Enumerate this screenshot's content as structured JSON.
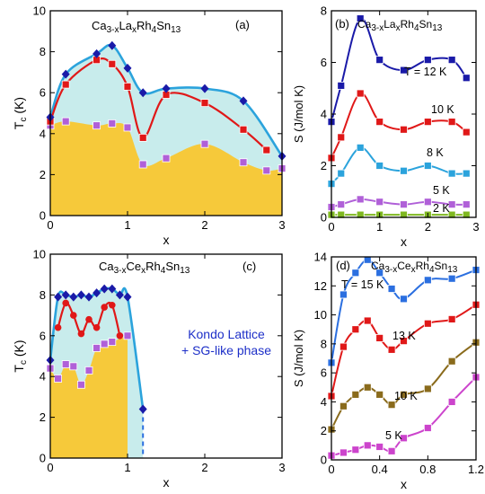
{
  "chart_data": [
    {
      "panel_label": "(a)",
      "type": "line",
      "compound": {
        "base": "Ca",
        "sub1": "3-x",
        "mid1": "La",
        "sub2": "x",
        "rest": "Rh",
        "sub3": "4",
        "rest2": "Sn",
        "sub4": "13"
      },
      "xlabel": "x",
      "ylabel_main": "T",
      "ylabel_sub": "c",
      "ylabel_unit": " (K)",
      "xlim": [
        0,
        3
      ],
      "ylim": [
        0,
        10
      ],
      "xticks": [
        0,
        1,
        2,
        3
      ],
      "yticks": [
        0,
        2,
        4,
        6,
        8,
        10
      ],
      "series": [
        {
          "marker": "diamond",
          "color": "#1a1aa8",
          "line_color": "#2ba3dc",
          "x": [
            0,
            0.2,
            0.6,
            0.8,
            1.0,
            1.2,
            1.5,
            2.0,
            2.5,
            3.0
          ],
          "y": [
            4.8,
            6.9,
            7.9,
            8.3,
            7.2,
            6.0,
            6.2,
            6.2,
            5.6,
            2.9
          ]
        },
        {
          "marker": "square",
          "color": "#e01818",
          "line_color": "#e01818",
          "x": [
            0,
            0.2,
            0.6,
            0.8,
            1.0,
            1.2,
            1.5,
            2.0,
            2.5,
            2.8
          ],
          "y": [
            4.6,
            6.4,
            7.6,
            7.4,
            6.3,
            3.8,
            5.9,
            5.5,
            4.2,
            3.2
          ]
        },
        {
          "marker": "square",
          "color": "#b060d8",
          "line_color": null,
          "x": [
            0,
            0.2,
            0.6,
            0.8,
            1.0,
            1.2,
            1.5,
            2.0,
            2.5,
            2.8,
            3.0
          ],
          "y": [
            4.4,
            4.6,
            4.4,
            4.5,
            4.3,
            2.5,
            2.8,
            3.5,
            2.6,
            2.2,
            2.3
          ]
        }
      ]
    },
    {
      "panel_label": "(b)",
      "type": "line",
      "compound": {
        "base": "Ca",
        "sub1": "3-x",
        "mid1": "La",
        "sub2": "x",
        "rest": "Rh",
        "sub3": "4",
        "rest2": "Sn",
        "sub4": "13"
      },
      "xlabel": "x",
      "ylabel": "S (J/mol K)",
      "xlim": [
        0,
        3
      ],
      "ylim": [
        0,
        8
      ],
      "xticks": [
        0,
        1,
        2,
        3
      ],
      "yticks": [
        0,
        2,
        4,
        6,
        8
      ],
      "series": [
        {
          "name": "T = 12 K",
          "color": "#1a1aa8",
          "x": [
            0,
            0.2,
            0.6,
            1.0,
            1.5,
            2.0,
            2.5,
            2.8
          ],
          "y": [
            3.7,
            5.1,
            7.7,
            6.1,
            5.7,
            6.1,
            6.1,
            5.4
          ]
        },
        {
          "name": "10 K",
          "color": "#e01818",
          "x": [
            0,
            0.2,
            0.6,
            1.0,
            1.5,
            2.0,
            2.5,
            2.8
          ],
          "y": [
            2.3,
            3.1,
            4.8,
            3.7,
            3.4,
            3.7,
            3.7,
            3.3
          ]
        },
        {
          "name": "8 K",
          "color": "#2ba3dc",
          "x": [
            0,
            0.2,
            0.6,
            1.0,
            1.5,
            2.0,
            2.5,
            2.8
          ],
          "y": [
            1.3,
            1.7,
            2.7,
            2.0,
            1.8,
            2.0,
            1.7,
            1.7
          ]
        },
        {
          "name": "5 K",
          "color": "#b060d8",
          "x": [
            0,
            0.2,
            0.6,
            1.0,
            1.5,
            2.0,
            2.5,
            2.8
          ],
          "y": [
            0.4,
            0.5,
            0.7,
            0.6,
            0.5,
            0.6,
            0.5,
            0.5
          ]
        },
        {
          "name": "2 K",
          "color": "#7fb820",
          "x": [
            0,
            0.2,
            0.6,
            1.0,
            1.5,
            2.0,
            2.5,
            2.8
          ],
          "y": [
            0.1,
            0.1,
            0.1,
            0.1,
            0.1,
            0.1,
            0.1,
            0.1
          ]
        }
      ]
    },
    {
      "panel_label": "(c)",
      "type": "line",
      "compound": {
        "base": "Ca",
        "sub1": "3-x",
        "mid1": "Ce",
        "sub2": "x",
        "rest": "Rh",
        "sub3": "4",
        "rest2": "Sn",
        "sub4": "13"
      },
      "annotation": [
        "Kondo Lattice",
        "+ SG-like phase"
      ],
      "xlabel": "x",
      "ylabel_main": "T",
      "ylabel_sub": "c",
      "ylabel_unit": " (K)",
      "xlim": [
        0,
        3
      ],
      "ylim": [
        0,
        10
      ],
      "xticks": [
        0,
        1,
        2,
        3
      ],
      "yticks": [
        0,
        2,
        4,
        6,
        8,
        10
      ],
      "series": [
        {
          "marker": "diamond",
          "color": "#1a1aa8",
          "line_color": "#2ba3dc",
          "x": [
            0,
            0.1,
            0.2,
            0.3,
            0.4,
            0.5,
            0.6,
            0.7,
            0.8,
            0.9,
            1.0,
            1.2
          ],
          "y": [
            4.8,
            7.9,
            8.0,
            7.9,
            8.0,
            7.9,
            8.1,
            8.3,
            8.3,
            8.0,
            7.9,
            2.4
          ]
        },
        {
          "marker": "circle",
          "color": "#e01818",
          "line_color": "#e01818",
          "x": [
            0.1,
            0.2,
            0.3,
            0.4,
            0.5,
            0.6,
            0.7,
            0.8,
            0.9
          ],
          "y": [
            6.4,
            7.6,
            7.0,
            6.1,
            6.8,
            6.4,
            7.4,
            7.5,
            6.0
          ]
        },
        {
          "marker": "square",
          "color": "#b060d8",
          "line_color": null,
          "x": [
            0,
            0.1,
            0.2,
            0.3,
            0.4,
            0.5,
            0.6,
            0.7,
            0.8,
            1.0
          ],
          "y": [
            4.4,
            3.9,
            4.6,
            4.5,
            3.6,
            4.3,
            5.4,
            5.6,
            5.7,
            6.0
          ]
        }
      ]
    },
    {
      "panel_label": "(d)",
      "type": "line",
      "compound": {
        "base": "Ca",
        "sub1": "3-x",
        "mid1": "Ce",
        "sub2": "x",
        "rest": "Rh",
        "sub3": "4",
        "rest2": "Sn",
        "sub4": "13"
      },
      "xlabel": "x",
      "ylabel": "S (J/mol K)",
      "xlim": [
        0,
        1.2
      ],
      "ylim": [
        0,
        14
      ],
      "xticks": [
        0,
        0.4,
        0.8,
        1.2
      ],
      "yticks": [
        0,
        2,
        4,
        6,
        8,
        10,
        12,
        14
      ],
      "series": [
        {
          "name": "T = 15 K",
          "color": "#2b6fe0",
          "x": [
            0,
            0.1,
            0.2,
            0.3,
            0.4,
            0.5,
            0.6,
            0.8,
            1.0,
            1.2
          ],
          "y": [
            6.7,
            11.4,
            12.9,
            13.8,
            12.9,
            11.8,
            11.1,
            12.4,
            12.5,
            13.1
          ]
        },
        {
          "name": "13 K",
          "color": "#e01818",
          "x": [
            0,
            0.1,
            0.2,
            0.3,
            0.4,
            0.5,
            0.6,
            0.8,
            1.0,
            1.2
          ],
          "y": [
            4.4,
            7.8,
            9.0,
            9.6,
            8.4,
            7.6,
            8.2,
            9.4,
            9.7,
            10.7
          ]
        },
        {
          "name": "10 K",
          "color": "#8a6b1c",
          "x": [
            0,
            0.1,
            0.2,
            0.3,
            0.4,
            0.5,
            0.6,
            0.8,
            1.0,
            1.2
          ],
          "y": [
            2.1,
            3.7,
            4.5,
            5.0,
            4.5,
            3.8,
            4.5,
            4.9,
            6.8,
            8.1
          ]
        },
        {
          "name": "5 K",
          "color": "#cc44cc",
          "x": [
            0,
            0.1,
            0.2,
            0.3,
            0.4,
            0.5,
            0.6,
            0.8,
            1.0,
            1.2
          ],
          "y": [
            0.3,
            0.5,
            0.7,
            1.0,
            0.9,
            0.6,
            1.5,
            2.2,
            4.0,
            5.7
          ]
        }
      ]
    }
  ]
}
